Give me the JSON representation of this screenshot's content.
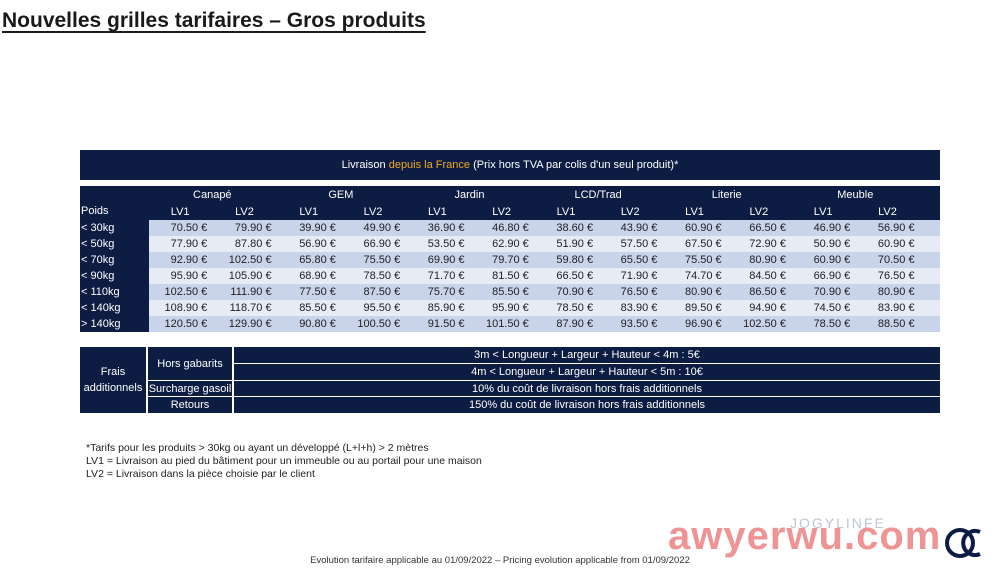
{
  "title": "Nouvelles grilles tarifaires – Gros produits",
  "banner": {
    "pre": "Livraison ",
    "highlight": "depuis la France",
    "post": " (Prix hors TVA par colis d'un seul produit)*"
  },
  "table": {
    "poids_label": "Poids",
    "categories": [
      "Canapé",
      "GEM",
      "Jardin",
      "LCD/Trad",
      "Literie",
      "Meuble"
    ],
    "levels": [
      "LV1",
      "LV2"
    ],
    "rows": [
      {
        "poids": "< 30kg",
        "values": [
          "70.50 €",
          "79.90 €",
          "39.90 €",
          "49.90 €",
          "36.90 €",
          "46.80 €",
          "38.60 €",
          "43.90 €",
          "60.90 €",
          "66.50 €",
          "46.90 €",
          "56.90 €"
        ]
      },
      {
        "poids": "< 50kg",
        "values": [
          "77.90 €",
          "87.80 €",
          "56.90 €",
          "66.90 €",
          "53.50 €",
          "62.90 €",
          "51.90 €",
          "57.50 €",
          "67.50 €",
          "72.90 €",
          "50.90 €",
          "60.90 €"
        ]
      },
      {
        "poids": "< 70kg",
        "values": [
          "92.90 €",
          "102.50 €",
          "65.80 €",
          "75.50 €",
          "69.90 €",
          "79.70 €",
          "59.80 €",
          "65.50 €",
          "75.50 €",
          "80.90 €",
          "60.90 €",
          "70.50 €"
        ]
      },
      {
        "poids": "< 90kg",
        "values": [
          "95.90 €",
          "105.90 €",
          "68.90 €",
          "78.50 €",
          "71.70 €",
          "81.50 €",
          "66.50 €",
          "71.90 €",
          "74.70 €",
          "84.50 €",
          "66.90 €",
          "76.50 €"
        ]
      },
      {
        "poids": "< 110kg",
        "values": [
          "102.50 €",
          "111.90 €",
          "77.50 €",
          "87.50 €",
          "75.70 €",
          "85.50 €",
          "70.90 €",
          "76.50 €",
          "80.90 €",
          "86.50 €",
          "70.90 €",
          "80.90 €"
        ]
      },
      {
        "poids": "< 140kg",
        "values": [
          "108.90 €",
          "118.70 €",
          "85.50 €",
          "95.50 €",
          "85.90 €",
          "95.90 €",
          "78.50 €",
          "83.90 €",
          "89.50 €",
          "94.90 €",
          "74.50 €",
          "83.90 €"
        ]
      },
      {
        "poids": "> 140kg",
        "values": [
          "120.50 €",
          "129.90 €",
          "90.80 €",
          "100.50 €",
          "91.50 €",
          "101.50 €",
          "87.90 €",
          "93.50 €",
          "96.90 €",
          "102.50 €",
          "78.50 €",
          "88.50 €"
        ]
      }
    ]
  },
  "frais": {
    "label_line1": "Frais",
    "label_line2": "additionnels",
    "hors_gabarits": "Hors gabarits",
    "hg1": "3m < Longueur + Largeur + Hauteur < 4m : 5€",
    "hg2": "4m < Longueur + Largeur + Hauteur < 5m : 10€",
    "surcharge": "Surcharge gasoil",
    "surcharge_desc": "10% du coût de livraison hors frais additionnels",
    "retours": "Retours",
    "retours_desc": "150% du coût de livraison hors frais additionnels"
  },
  "notes": [
    "*Tarifs pour les produits > 30kg ou ayant un développé (L+l+h) > 2 mètres",
    "LV1 = Livraison au pied du bâtiment pour un immeuble ou au portail pour une maison",
    "LV2 = Livraison dans la pièce choisie par le client"
  ],
  "footer": "Evolution tarifaire applicable au 01/09/2022 – Pricing evolution applicable from 01/09/2022",
  "watermark": {
    "text": "awyerwu.com",
    "handle": "JOGYLINFE"
  },
  "logo_text": "DC"
}
